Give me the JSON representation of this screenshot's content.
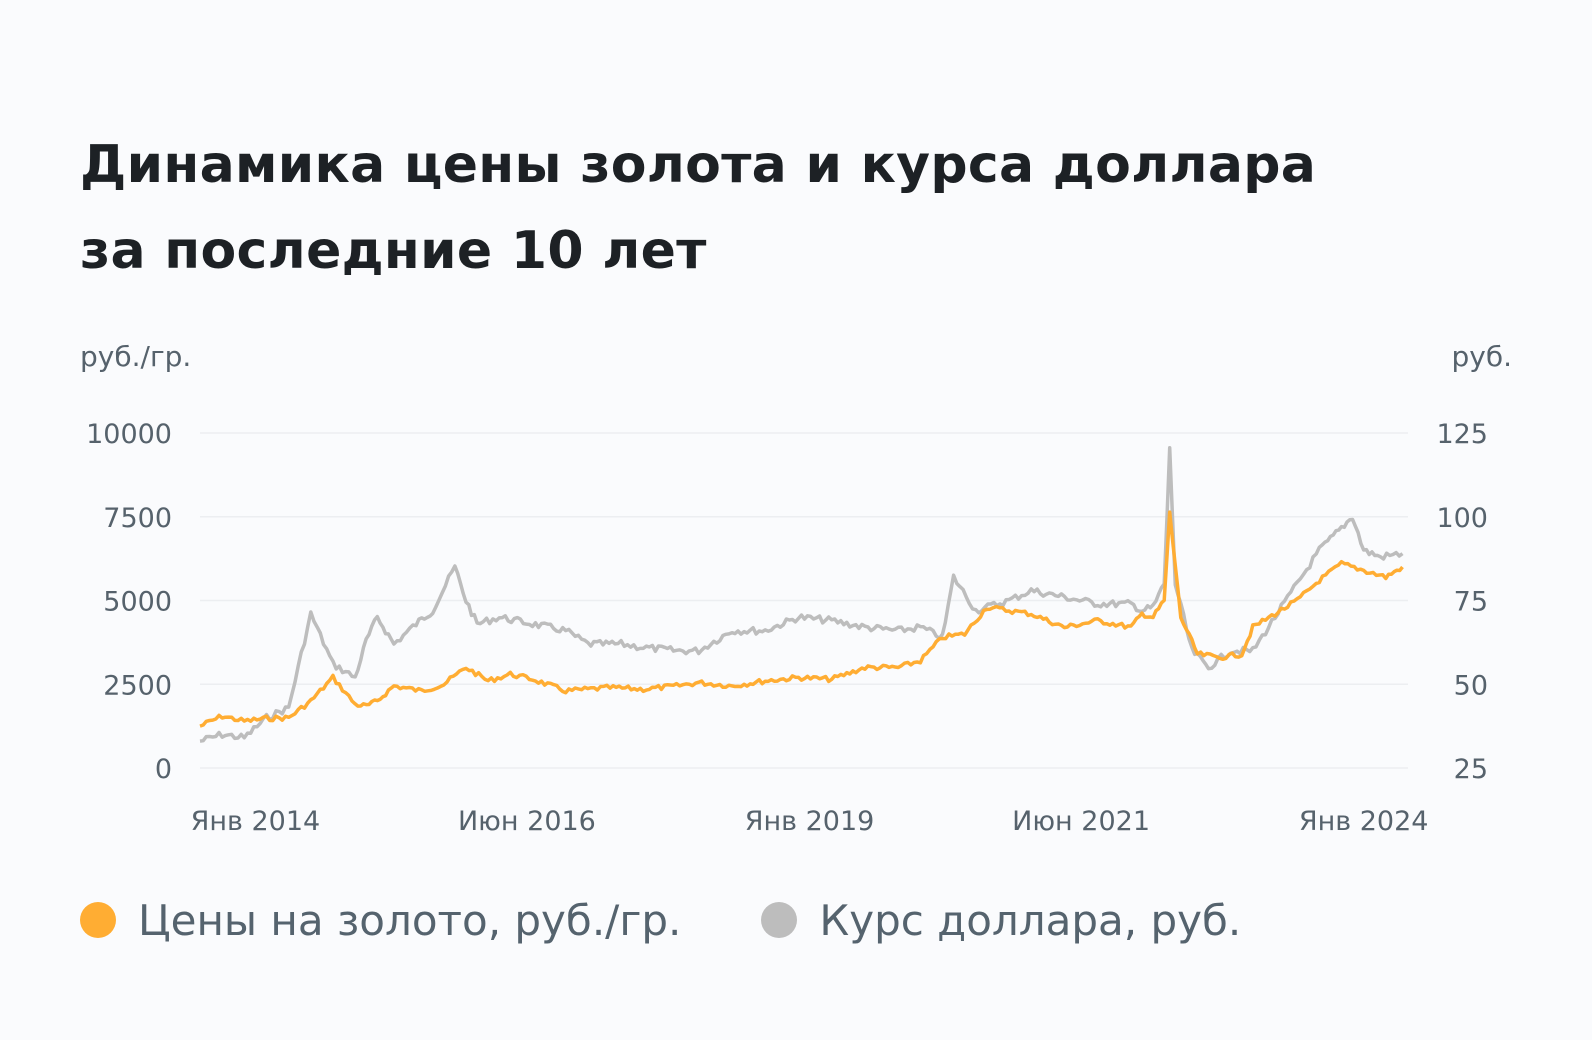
{
  "title_line1": "Динамика цены золота и курса доллара",
  "title_line2": "за последние 10 лет",
  "colors": {
    "gold": "#ffad33",
    "usd": "#bdbdbd",
    "grid": "#eceef1",
    "text": "#56626c"
  },
  "chart_data": {
    "type": "line",
    "title": "Динамика цены золота и курса доллара за последние 10 лет",
    "y_left": {
      "label": "руб./гр.",
      "range": [
        0,
        10000
      ],
      "ticks": [
        0,
        2500,
        5000,
        7500,
        10000
      ]
    },
    "y_right": {
      "label": "руб.",
      "range": [
        25,
        125
      ],
      "ticks": [
        25,
        50,
        75,
        100,
        125
      ]
    },
    "x_range": [
      2013.5,
      2024.4
    ],
    "x_ticks": [
      {
        "label": "Янв 2014",
        "x": 2014.0
      },
      {
        "label": "Июн 2016",
        "x": 2016.45
      },
      {
        "label": "Янв 2019",
        "x": 2019.0
      },
      {
        "label": "Июн 2021",
        "x": 2021.45
      },
      {
        "label": "Янв 2024",
        "x": 2024.0
      }
    ],
    "grid": true,
    "legend_position": "bottom-left",
    "series": [
      {
        "name": "Цены на золото, руб./гр.",
        "axis": "left",
        "x": [
          2013.5,
          2013.7,
          2013.9,
          2014.1,
          2014.3,
          2014.5,
          2014.7,
          2014.9,
          2015.0,
          2015.1,
          2015.25,
          2015.5,
          2015.7,
          2015.9,
          2016.1,
          2016.3,
          2016.5,
          2016.8,
          2017.0,
          2017.2,
          2017.5,
          2017.8,
          2018.0,
          2018.3,
          2018.6,
          2018.9,
          2019.2,
          2019.5,
          2019.8,
          2020.0,
          2020.2,
          2020.4,
          2020.6,
          2020.8,
          2021.0,
          2021.3,
          2021.6,
          2021.9,
          2022.0,
          2022.1,
          2022.2,
          2022.25,
          2022.35,
          2022.5,
          2022.7,
          2022.9,
          2023.0,
          2023.2,
          2023.4,
          2023.6,
          2023.8,
          2024.0,
          2024.2,
          2024.35
        ],
        "values": [
          1250,
          1550,
          1400,
          1480,
          1500,
          2000,
          2700,
          1900,
          1850,
          2000,
          2450,
          2300,
          2500,
          3000,
          2600,
          2800,
          2650,
          2300,
          2350,
          2400,
          2350,
          2450,
          2550,
          2450,
          2600,
          2700,
          2650,
          3000,
          3000,
          3200,
          3900,
          4000,
          4800,
          4700,
          4600,
          4200,
          4400,
          4200,
          4600,
          4500,
          5000,
          7600,
          4500,
          3400,
          3300,
          3400,
          4200,
          4600,
          5000,
          5600,
          6100,
          5900,
          5700,
          6000
        ]
      },
      {
        "name": "Курс доллара, руб.",
        "axis": "right",
        "x": [
          2013.5,
          2013.7,
          2013.9,
          2014.1,
          2014.3,
          2014.5,
          2014.7,
          2014.9,
          2015.0,
          2015.1,
          2015.25,
          2015.45,
          2015.6,
          2015.8,
          2015.9,
          2016.0,
          2016.2,
          2016.5,
          2016.8,
          2017.0,
          2017.3,
          2017.5,
          2017.8,
          2018.0,
          2018.3,
          2018.6,
          2018.9,
          2019.2,
          2019.5,
          2019.8,
          2020.0,
          2020.2,
          2020.3,
          2020.5,
          2020.8,
          2021.0,
          2021.3,
          2021.6,
          2021.9,
          2022.0,
          2022.1,
          2022.2,
          2022.25,
          2022.3,
          2022.45,
          2022.6,
          2022.8,
          2023.0,
          2023.2,
          2023.4,
          2023.6,
          2023.75,
          2023.9,
          2024.0,
          2024.15,
          2024.35
        ],
        "values": [
          33,
          35,
          34,
          40,
          43,
          71,
          56,
          52,
          63,
          70,
          62,
          68,
          72,
          85,
          75,
          68,
          70,
          68,
          66,
          62,
          62,
          61,
          60,
          60,
          66,
          66,
          70,
          69,
          67,
          66,
          67,
          64,
          82,
          72,
          75,
          78,
          76,
          74,
          74,
          72,
          73,
          80,
          120,
          80,
          60,
          55,
          60,
          60,
          70,
          80,
          90,
          95,
          100,
          90,
          88,
          89
        ]
      }
    ]
  }
}
